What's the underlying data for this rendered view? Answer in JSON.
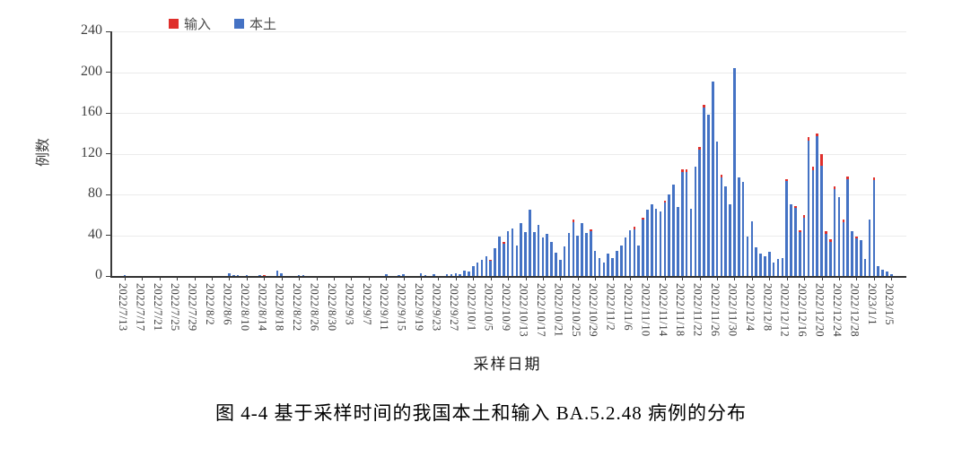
{
  "figure": {
    "caption": "图 4-4 基于采样时间的我国本土和输入 BA.5.2.48 病例的分布"
  },
  "chart": {
    "y_axis": {
      "label": "例数",
      "ticks": [
        0,
        40,
        80,
        120,
        160,
        200,
        240
      ]
    },
    "x_axis": {
      "label": "采样日期",
      "tick_every": 4
    },
    "legend": [
      {
        "label": "输入",
        "color": "#df2f2b"
      },
      {
        "label": "本土",
        "color": "#4472c4"
      }
    ]
  },
  "chart_data": {
    "type": "bar",
    "stacked": true,
    "title": "",
    "xlabel": "采样日期",
    "ylabel": "例数",
    "ylim": [
      0,
      240
    ],
    "grid": "horizontal",
    "legend_position": "top-left-inside",
    "xtick_labels": [
      "2022/7/13",
      "2022/7/17",
      "2022/7/21",
      "2022/7/25",
      "2022/7/29",
      "2022/8/2",
      "2022/8/6",
      "2022/8/10",
      "2022/8/14",
      "2022/8/18",
      "2022/8/22",
      "2022/8/26",
      "2022/8/30",
      "2022/9/3",
      "2022/9/7",
      "2022/9/11",
      "2022/9/15",
      "2022/9/19",
      "2022/9/23",
      "2022/9/27",
      "2022/10/1",
      "2022/10/5",
      "2022/10/9",
      "2022/10/13",
      "2022/10/17",
      "2022/10/21",
      "2022/10/25",
      "2022/10/29",
      "2022/11/2",
      "2022/11/6",
      "2022/11/10",
      "2022/11/14",
      "2022/11/18",
      "2022/11/22",
      "2022/11/26",
      "2022/11/30",
      "2022/12/4",
      "2022/12/8",
      "2022/12/12",
      "2022/12/16",
      "2022/12/20",
      "2022/12/24",
      "2022/12/28",
      "2023/1/1",
      "2023/1/5"
    ],
    "x": [
      "2022/7/13",
      "2022/7/14",
      "2022/7/15",
      "2022/7/16",
      "2022/7/17",
      "2022/7/18",
      "2022/7/19",
      "2022/7/20",
      "2022/7/21",
      "2022/7/22",
      "2022/7/23",
      "2022/7/24",
      "2022/7/25",
      "2022/7/26",
      "2022/7/27",
      "2022/7/28",
      "2022/7/29",
      "2022/7/30",
      "2022/7/31",
      "2022/8/1",
      "2022/8/2",
      "2022/8/3",
      "2022/8/4",
      "2022/8/5",
      "2022/8/6",
      "2022/8/7",
      "2022/8/8",
      "2022/8/9",
      "2022/8/10",
      "2022/8/11",
      "2022/8/12",
      "2022/8/13",
      "2022/8/14",
      "2022/8/15",
      "2022/8/16",
      "2022/8/17",
      "2022/8/18",
      "2022/8/19",
      "2022/8/20",
      "2022/8/21",
      "2022/8/22",
      "2022/8/23",
      "2022/8/24",
      "2022/8/25",
      "2022/8/26",
      "2022/8/27",
      "2022/8/28",
      "2022/8/29",
      "2022/8/30",
      "2022/8/31",
      "2022/9/1",
      "2022/9/2",
      "2022/9/3",
      "2022/9/4",
      "2022/9/5",
      "2022/9/6",
      "2022/9/7",
      "2022/9/8",
      "2022/9/9",
      "2022/9/10",
      "2022/9/11",
      "2022/9/12",
      "2022/9/13",
      "2022/9/14",
      "2022/9/15",
      "2022/9/16",
      "2022/9/17",
      "2022/9/18",
      "2022/9/19",
      "2022/9/20",
      "2022/9/21",
      "2022/9/22",
      "2022/9/23",
      "2022/9/24",
      "2022/9/25",
      "2022/9/26",
      "2022/9/27",
      "2022/9/28",
      "2022/9/29",
      "2022/9/30",
      "2022/10/1",
      "2022/10/2",
      "2022/10/3",
      "2022/10/4",
      "2022/10/5",
      "2022/10/6",
      "2022/10/7",
      "2022/10/8",
      "2022/10/9",
      "2022/10/10",
      "2022/10/11",
      "2022/10/12",
      "2022/10/13",
      "2022/10/14",
      "2022/10/15",
      "2022/10/16",
      "2022/10/17",
      "2022/10/18",
      "2022/10/19",
      "2022/10/20",
      "2022/10/21",
      "2022/10/22",
      "2022/10/23",
      "2022/10/24",
      "2022/10/25",
      "2022/10/26",
      "2022/10/27",
      "2022/10/28",
      "2022/10/29",
      "2022/10/30",
      "2022/10/31",
      "2022/11/1",
      "2022/11/2",
      "2022/11/3",
      "2022/11/4",
      "2022/11/5",
      "2022/11/6",
      "2022/11/7",
      "2022/11/8",
      "2022/11/9",
      "2022/11/10",
      "2022/11/11",
      "2022/11/12",
      "2022/11/13",
      "2022/11/14",
      "2022/11/15",
      "2022/11/16",
      "2022/11/17",
      "2022/11/18",
      "2022/11/19",
      "2022/11/20",
      "2022/11/21",
      "2022/11/22",
      "2022/11/23",
      "2022/11/24",
      "2022/11/25",
      "2022/11/26",
      "2022/11/27",
      "2022/11/28",
      "2022/11/29",
      "2022/11/30",
      "2022/12/1",
      "2022/12/2",
      "2022/12/3",
      "2022/12/4",
      "2022/12/5",
      "2022/12/6",
      "2022/12/7",
      "2022/12/8",
      "2022/12/9",
      "2022/12/10",
      "2022/12/11",
      "2022/12/12",
      "2022/12/13",
      "2022/12/14",
      "2022/12/15",
      "2022/12/16",
      "2022/12/17",
      "2022/12/18",
      "2022/12/19",
      "2022/12/20",
      "2022/12/21",
      "2022/12/22",
      "2022/12/23",
      "2022/12/24",
      "2022/12/25",
      "2022/12/26",
      "2022/12/27",
      "2022/12/28",
      "2022/12/29",
      "2022/12/30",
      "2022/12/31",
      "2023/1/1",
      "2023/1/2",
      "2023/1/3",
      "2023/1/4",
      "2023/1/5"
    ],
    "series": [
      {
        "name": "本土",
        "color": "#4472c4",
        "values": [
          1,
          0,
          0,
          0,
          0,
          0,
          0,
          0,
          0,
          0,
          0,
          0,
          0,
          0,
          0,
          0,
          0,
          0,
          0,
          0,
          0,
          0,
          0,
          0,
          3,
          1,
          1,
          0,
          1,
          0,
          0,
          1,
          0,
          0,
          0,
          5,
          3,
          0,
          0,
          0,
          1,
          1,
          0,
          0,
          0,
          0,
          0,
          0,
          0,
          0,
          0,
          0,
          0,
          0,
          0,
          0,
          0,
          0,
          0,
          0,
          2,
          0,
          0,
          1,
          2,
          0,
          0,
          0,
          3,
          1,
          0,
          2,
          0,
          0,
          2,
          2,
          3,
          2,
          5,
          4,
          10,
          13,
          16,
          19,
          15,
          27,
          39,
          32,
          44,
          47,
          30,
          52,
          43,
          65,
          43,
          50,
          38,
          41,
          33,
          23,
          16,
          29,
          42,
          53,
          40,
          52,
          42,
          44,
          25,
          18,
          13,
          22,
          18,
          25,
          30,
          38,
          45,
          46,
          30,
          55,
          65,
          70,
          66,
          63,
          72,
          80,
          90,
          68,
          102,
          102,
          66,
          107,
          124,
          165,
          158,
          191,
          132,
          97,
          88,
          70,
          204,
          97,
          92,
          39,
          54,
          28,
          22,
          19,
          24,
          13,
          17,
          18,
          93,
          70,
          67,
          43,
          57,
          133,
          104,
          137,
          108,
          41,
          33,
          85,
          77,
          53,
          95,
          44,
          37,
          35,
          17,
          55,
          94,
          10,
          6,
          4,
          2
        ]
      },
      {
        "name": "输入",
        "color": "#df2f2b",
        "values": [
          0,
          0,
          0,
          0,
          0,
          0,
          0,
          0,
          0,
          0,
          0,
          0,
          0,
          0,
          0,
          0,
          0,
          0,
          0,
          0,
          0,
          0,
          0,
          0,
          0,
          0,
          0,
          0,
          0,
          0,
          0,
          0,
          1,
          0,
          0,
          0,
          0,
          0,
          0,
          0,
          0,
          0,
          0,
          0,
          0,
          0,
          0,
          0,
          0,
          0,
          0,
          0,
          0,
          0,
          0,
          0,
          0,
          0,
          0,
          0,
          0,
          0,
          0,
          0,
          0,
          0,
          0,
          0,
          0,
          0,
          0,
          0,
          0,
          0,
          0,
          0,
          0,
          0,
          0,
          0,
          0,
          0,
          0,
          0,
          1,
          0,
          0,
          1,
          0,
          0,
          0,
          0,
          0,
          0,
          0,
          0,
          0,
          0,
          0,
          0,
          0,
          0,
          0,
          2,
          0,
          0,
          0,
          2,
          0,
          0,
          0,
          0,
          0,
          0,
          0,
          0,
          0,
          2,
          0,
          2,
          0,
          0,
          0,
          0,
          2,
          0,
          0,
          0,
          3,
          3,
          0,
          0,
          3,
          3,
          0,
          0,
          0,
          2,
          0,
          0,
          0,
          0,
          0,
          0,
          0,
          0,
          0,
          0,
          0,
          0,
          0,
          0,
          2,
          0,
          2,
          2,
          3,
          3,
          3,
          3,
          12,
          3,
          3,
          3,
          0,
          2,
          3,
          0,
          2,
          0,
          0,
          0,
          3,
          0,
          0,
          0,
          0
        ]
      }
    ]
  }
}
